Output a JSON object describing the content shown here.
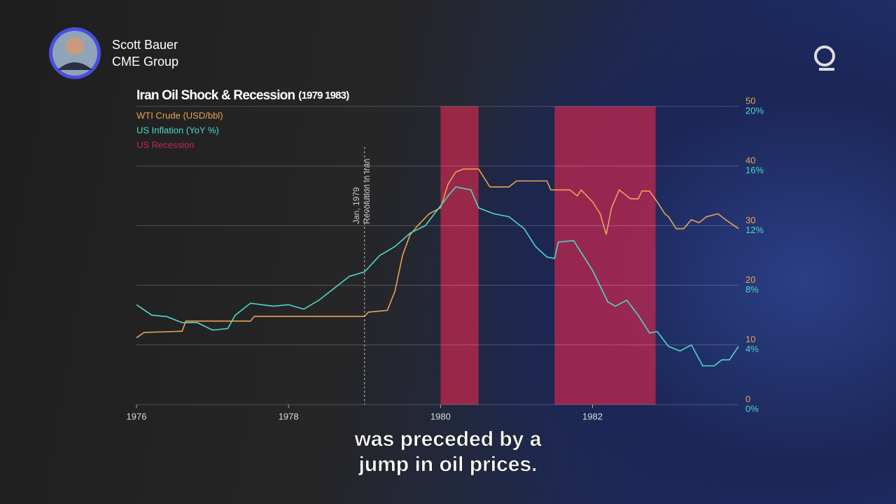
{
  "header": {
    "name": "Scott Bauer",
    "org": "CME Group"
  },
  "caption": [
    "was preceded by a",
    "jump in oil prices."
  ],
  "chart_data": {
    "type": "line",
    "title": "Iran Oil Shock & Recession",
    "subtitle": "(1979 1983)",
    "xlim": [
      1976,
      1983.92
    ],
    "xticks": [
      1976,
      1978,
      1980,
      1982
    ],
    "ylim": [
      0,
      50
    ],
    "yticks": [
      0,
      10,
      20,
      30,
      40,
      50
    ],
    "y2lim": [
      0,
      20
    ],
    "y2ticks": [
      {
        "value": 0,
        "label": "0%"
      },
      {
        "value": 4,
        "label": "4%"
      },
      {
        "value": 8,
        "label": "8%"
      },
      {
        "value": 12,
        "label": "12%"
      },
      {
        "value": 16,
        "label": "16%"
      },
      {
        "value": 20,
        "label": "20%"
      }
    ],
    "grid": true,
    "recession": {
      "name": "US Recession",
      "color": "#c8284e",
      "spans": [
        [
          1980.0,
          1980.5
        ],
        [
          1981.5,
          1982.83
        ]
      ]
    },
    "annotation": {
      "x": 1979.0,
      "text": [
        "Jan, 1979",
        "Revolution in Iran"
      ]
    },
    "series": [
      {
        "name": "WTI Crude (USD/bbl)",
        "color": "#e8a35a",
        "x": [
          1976.0,
          1976.1,
          1976.6,
          1976.65,
          1977.5,
          1977.55,
          1979.0,
          1979.05,
          1979.3,
          1979.4,
          1979.5,
          1979.6,
          1979.7,
          1979.85,
          1980.0,
          1980.1,
          1980.2,
          1980.3,
          1980.5,
          1980.65,
          1980.9,
          1981.0,
          1981.2,
          1981.4,
          1981.45,
          1981.7,
          1981.8,
          1981.85,
          1982.0,
          1982.1,
          1982.18,
          1982.25,
          1982.35,
          1982.5,
          1982.6,
          1982.65,
          1982.75,
          1982.85,
          1982.95,
          1983.0,
          1983.1,
          1983.2,
          1983.3,
          1983.4,
          1983.5,
          1983.65,
          1983.75,
          1983.92
        ],
        "values": [
          11.2,
          12.1,
          12.3,
          14.0,
          14.0,
          14.8,
          14.8,
          15.5,
          15.8,
          19,
          25,
          28.5,
          30,
          32,
          33,
          37,
          39,
          39.5,
          39.5,
          36.5,
          36.5,
          37.5,
          37.5,
          37.5,
          36,
          36,
          35,
          36,
          34,
          32,
          28.5,
          33,
          36,
          34.5,
          34.5,
          35.8,
          35.8,
          34,
          32,
          31.5,
          29.5,
          29.5,
          31,
          30.5,
          31.5,
          32,
          31,
          29.5
        ]
      },
      {
        "name": "US Inflation (YoY %)",
        "color": "#4fd8c8",
        "axis": "y2",
        "x": [
          1976.0,
          1976.2,
          1976.4,
          1976.6,
          1976.8,
          1977.0,
          1977.2,
          1977.3,
          1977.5,
          1977.8,
          1978.0,
          1978.2,
          1978.4,
          1978.6,
          1978.8,
          1979.0,
          1979.2,
          1979.4,
          1979.6,
          1979.8,
          1979.95,
          1980.1,
          1980.2,
          1980.4,
          1980.5,
          1980.7,
          1980.9,
          1981.1,
          1981.25,
          1981.4,
          1981.5,
          1981.55,
          1981.75,
          1981.85,
          1982.0,
          1982.2,
          1982.3,
          1982.45,
          1982.6,
          1982.75,
          1982.85,
          1983.0,
          1983.15,
          1983.3,
          1983.45,
          1983.6,
          1983.7,
          1983.8,
          1983.92
        ],
        "values": [
          6.7,
          6.0,
          5.9,
          5.5,
          5.5,
          5.0,
          5.1,
          6.0,
          6.8,
          6.6,
          6.7,
          6.4,
          7.0,
          7.8,
          8.6,
          8.9,
          10.0,
          10.6,
          11.5,
          12.0,
          13.0,
          14.0,
          14.6,
          14.4,
          13.2,
          12.8,
          12.6,
          11.8,
          10.6,
          9.9,
          9.8,
          10.9,
          11.0,
          10.2,
          9.0,
          6.9,
          6.6,
          7.0,
          6.0,
          4.8,
          4.9,
          3.9,
          3.6,
          4.0,
          2.6,
          2.6,
          3.0,
          3.0,
          3.9
        ]
      }
    ]
  }
}
